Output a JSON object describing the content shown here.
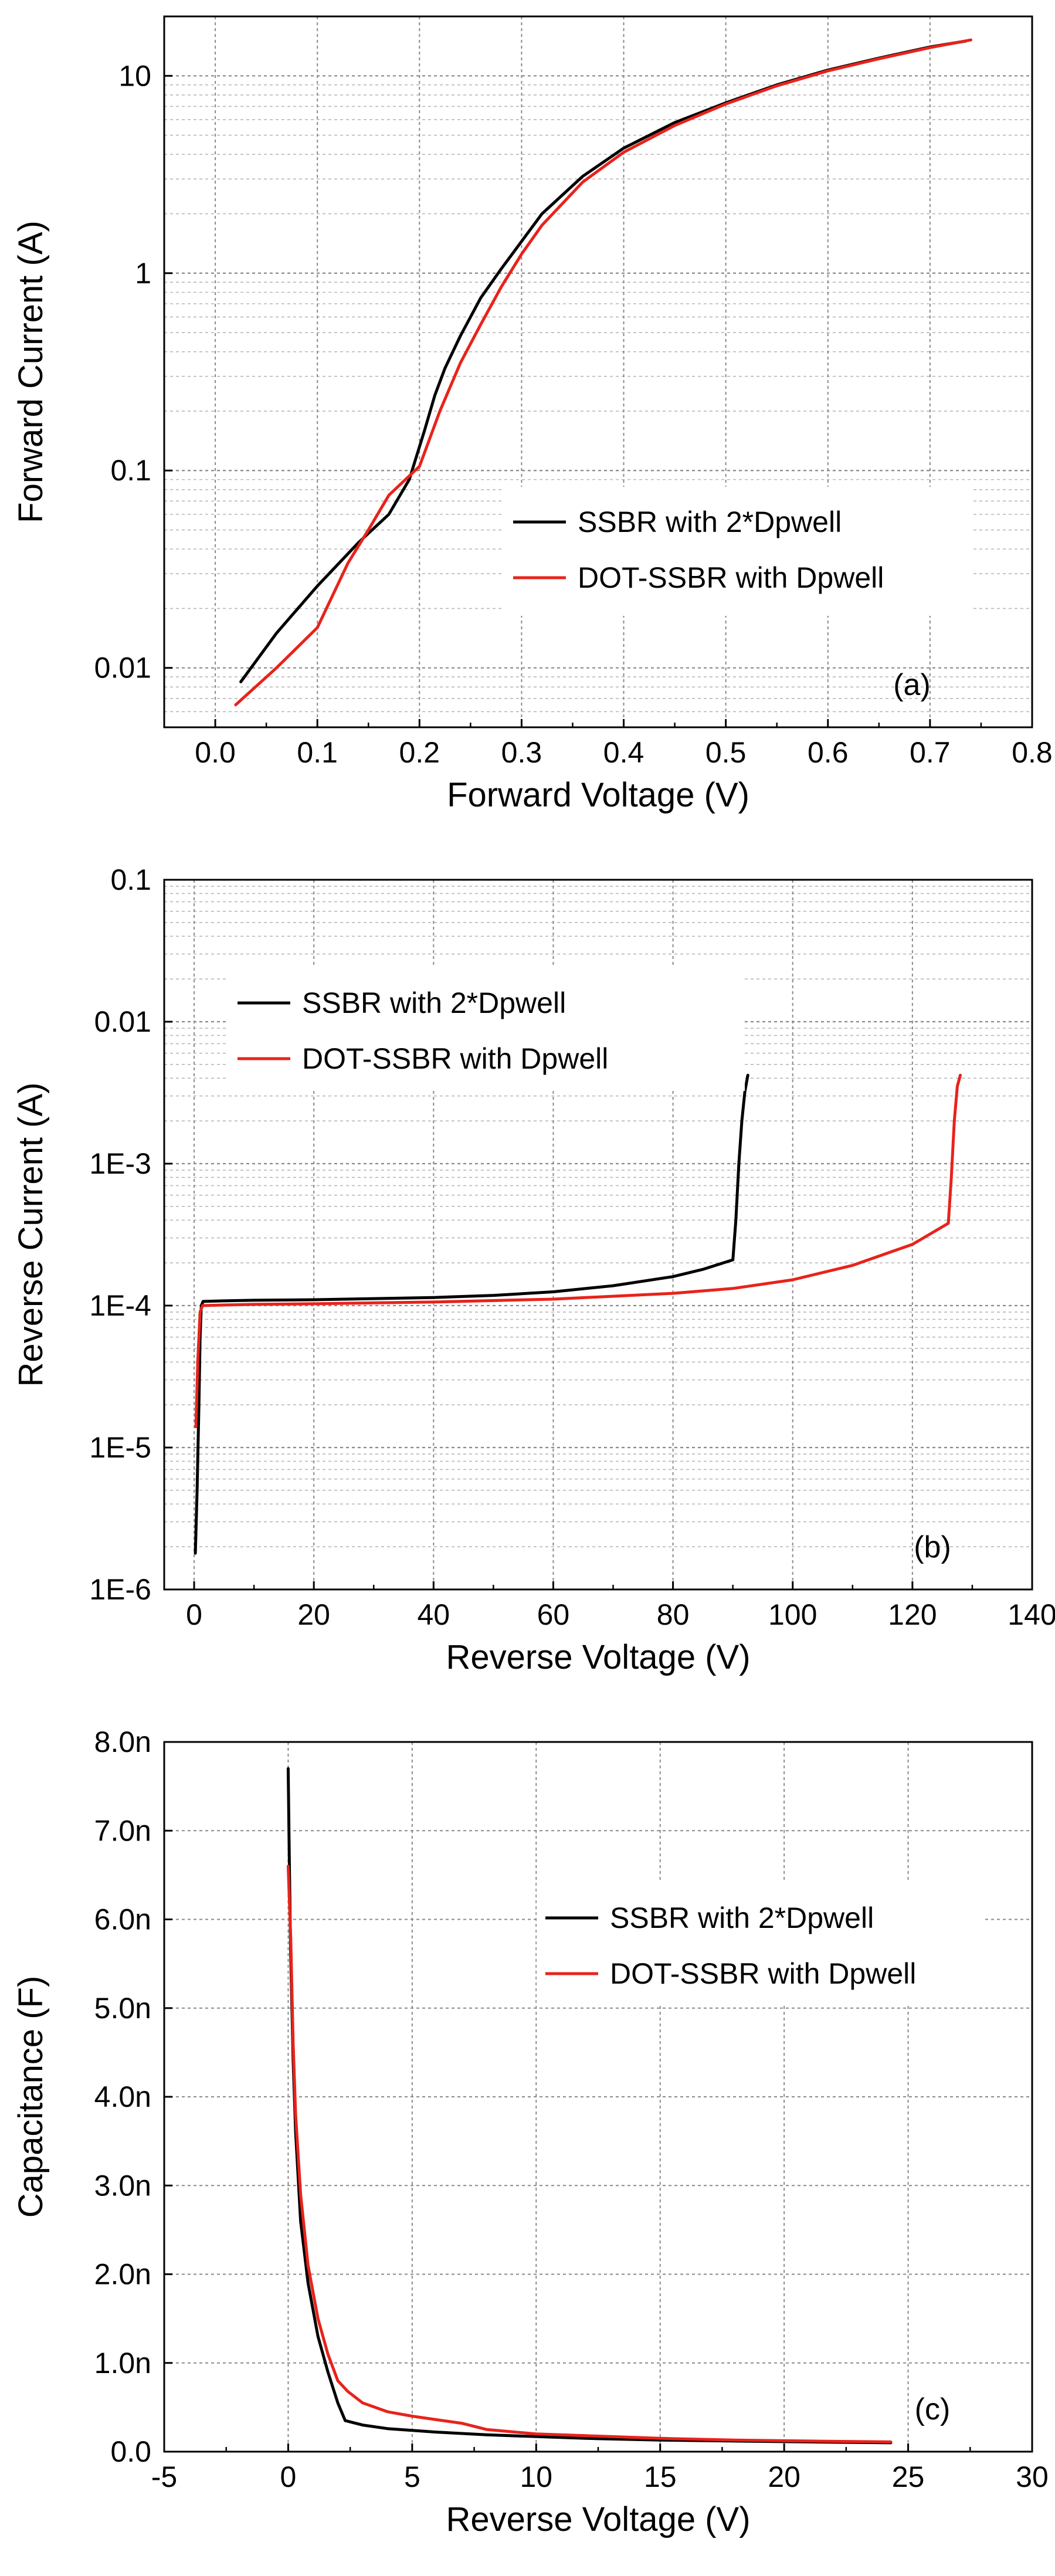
{
  "chart_data": [
    {
      "id": "a",
      "type": "line",
      "panel_label": "(a)",
      "title": "",
      "xlabel": "Forward Voltage (V)",
      "ylabel": "Forward Current (A)",
      "xscale": "linear",
      "yscale": "log",
      "xlim": [
        -0.05,
        0.8
      ],
      "ylim": [
        0.005,
        20
      ],
      "xticks": [
        0.0,
        0.1,
        0.2,
        0.3,
        0.4,
        0.5,
        0.6,
        0.7,
        0.8
      ],
      "xtick_labels": [
        "0.0",
        "0.1",
        "0.2",
        "0.3",
        "0.4",
        "0.5",
        "0.6",
        "0.7",
        "0.8"
      ],
      "yticks": [
        0.01,
        0.1,
        1,
        10
      ],
      "ytick_labels": [
        "0.01",
        "0.1",
        "1",
        "10"
      ],
      "grid": true,
      "legend_position": "center-right",
      "series": [
        {
          "name": "SSBR with 2*Dpwell",
          "color": "#000000",
          "x": [
            0.025,
            0.06,
            0.1,
            0.14,
            0.17,
            0.19,
            0.205,
            0.215,
            0.225,
            0.24,
            0.26,
            0.28,
            0.32,
            0.36,
            0.4,
            0.45,
            0.5,
            0.55,
            0.6,
            0.65,
            0.7,
            0.735
          ],
          "y": [
            0.0085,
            0.015,
            0.026,
            0.043,
            0.06,
            0.09,
            0.16,
            0.24,
            0.33,
            0.48,
            0.75,
            1.05,
            2.0,
            3.1,
            4.3,
            5.8,
            7.3,
            9.0,
            10.7,
            12.3,
            14.0,
            15.0
          ]
        },
        {
          "name": "DOT-SSBR with Dpwell",
          "color": "#e8231b",
          "x": [
            0.02,
            0.06,
            0.1,
            0.13,
            0.15,
            0.17,
            0.2,
            0.22,
            0.24,
            0.26,
            0.28,
            0.3,
            0.32,
            0.36,
            0.4,
            0.45,
            0.5,
            0.55,
            0.6,
            0.65,
            0.7,
            0.74
          ],
          "y": [
            0.0065,
            0.01,
            0.016,
            0.034,
            0.05,
            0.075,
            0.105,
            0.2,
            0.35,
            0.55,
            0.85,
            1.25,
            1.75,
            2.9,
            4.1,
            5.6,
            7.2,
            8.9,
            10.6,
            12.2,
            13.9,
            15.2
          ]
        }
      ]
    },
    {
      "id": "b",
      "type": "line",
      "panel_label": "(b)",
      "title": "",
      "xlabel": "Reverse Voltage (V)",
      "ylabel": "Reverse Current (A)",
      "xscale": "linear",
      "yscale": "log",
      "xlim": [
        -5,
        140
      ],
      "ylim": [
        1e-06,
        0.1
      ],
      "xticks": [
        0,
        20,
        40,
        60,
        80,
        100,
        120,
        140
      ],
      "xtick_labels": [
        "0",
        "20",
        "40",
        "60",
        "80",
        "100",
        "120",
        "140"
      ],
      "yticks": [
        1e-06,
        1e-05,
        0.0001,
        0.001,
        0.01,
        0.1
      ],
      "ytick_labels": [
        "1E-6",
        "1E-5",
        "1E-4",
        "1E-3",
        "0.01",
        "0.1"
      ],
      "grid": true,
      "legend_position": "top-left",
      "series": [
        {
          "name": "SSBR with 2*Dpwell",
          "color": "#000000",
          "x": [
            0.2,
            0.5,
            0.8,
            1.0,
            1.2,
            1.5,
            5,
            10,
            20,
            30,
            40,
            50,
            60,
            70,
            80,
            85,
            90,
            90.5,
            91,
            91.5,
            92,
            92.5
          ],
          "y": [
            1.8e-06,
            5e-06,
            2e-05,
            6e-05,
            0.0001,
            0.000107,
            0.000108,
            0.000109,
            0.00011,
            0.000112,
            0.000114,
            0.000118,
            0.000125,
            0.000138,
            0.00016,
            0.00018,
            0.00021,
            0.0004,
            0.001,
            0.002,
            0.0032,
            0.0042
          ]
        },
        {
          "name": "DOT-SSBR with Dpwell",
          "color": "#e8231b",
          "x": [
            0.3,
            0.6,
            1.0,
            1.4,
            5,
            10,
            20,
            40,
            60,
            80,
            90,
            100,
            110,
            120,
            126,
            126.5,
            127,
            127.5,
            128
          ],
          "y": [
            1.4e-05,
            4e-05,
            9e-05,
            0.0001,
            0.000101,
            0.000102,
            0.000103,
            0.000106,
            0.000111,
            0.000122,
            0.000132,
            0.000152,
            0.000192,
            0.00027,
            0.00038,
            0.0008,
            0.002,
            0.0035,
            0.0042
          ]
        }
      ]
    },
    {
      "id": "c",
      "type": "line",
      "panel_label": "(c)",
      "title": "",
      "xlabel": "Reverse Voltage (V)",
      "ylabel": "Capacitance (F)",
      "xscale": "linear",
      "yscale": "linear",
      "xlim": [
        -5,
        30
      ],
      "ylim": [
        0,
        8.0
      ],
      "y_unit_note": "values in nF",
      "xticks": [
        -5,
        0,
        5,
        10,
        15,
        20,
        25,
        30
      ],
      "xtick_labels": [
        "-5",
        "0",
        "5",
        "10",
        "15",
        "20",
        "25",
        "30"
      ],
      "yticks": [
        0,
        1,
        2,
        3,
        4,
        5,
        6,
        7,
        8
      ],
      "ytick_labels": [
        "0.0",
        "1.0n",
        "2.0n",
        "3.0n",
        "4.0n",
        "5.0n",
        "6.0n",
        "7.0n",
        "8.0n"
      ],
      "grid": true,
      "legend_position": "top-right",
      "series": [
        {
          "name": "SSBR with 2*Dpwell",
          "color": "#000000",
          "x": [
            0.0,
            0.05,
            0.1,
            0.2,
            0.3,
            0.5,
            0.8,
            1.2,
            1.6,
            2.0,
            2.3,
            3,
            4,
            6,
            8,
            10,
            12,
            15,
            18,
            21,
            24.3
          ],
          "y": [
            7.7,
            6.6,
            5.6,
            4.4,
            3.6,
            2.6,
            1.9,
            1.3,
            0.9,
            0.55,
            0.35,
            0.3,
            0.26,
            0.22,
            0.19,
            0.17,
            0.15,
            0.13,
            0.12,
            0.11,
            0.1
          ]
        },
        {
          "name": "DOT-SSBR with Dpwell",
          "color": "#e8231b",
          "x": [
            0.0,
            0.1,
            0.2,
            0.3,
            0.5,
            0.8,
            1.2,
            1.6,
            2.0,
            2.4,
            3,
            4,
            5,
            6,
            7,
            8,
            10,
            12,
            15,
            18,
            21,
            24.3
          ],
          "y": [
            6.6,
            5.8,
            4.6,
            3.8,
            2.9,
            2.1,
            1.5,
            1.1,
            0.8,
            0.68,
            0.55,
            0.45,
            0.4,
            0.36,
            0.32,
            0.25,
            0.2,
            0.18,
            0.15,
            0.13,
            0.12,
            0.11
          ]
        }
      ]
    }
  ]
}
